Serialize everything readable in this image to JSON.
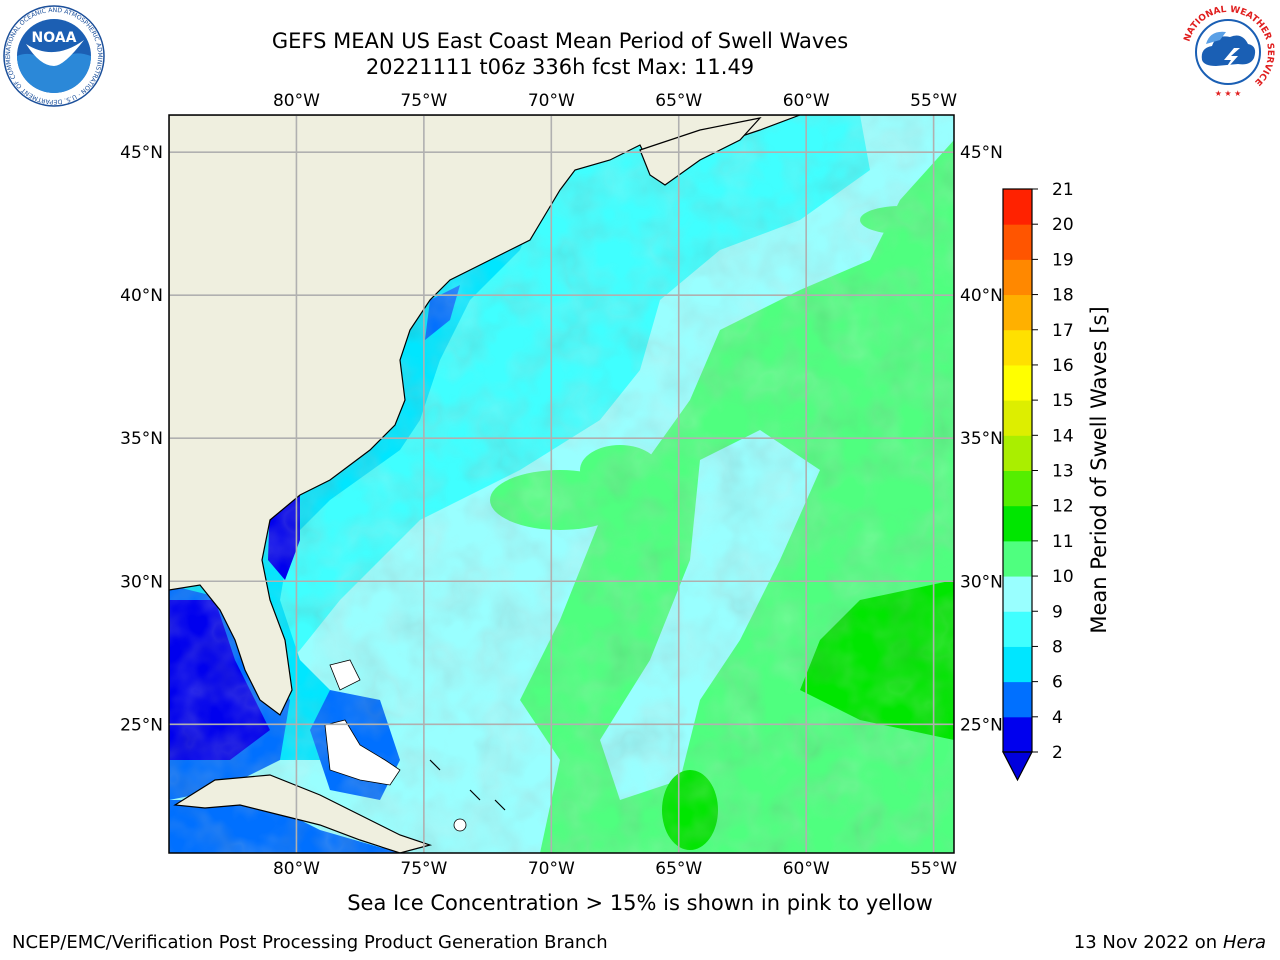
{
  "title": {
    "line1": "GEFS MEAN US East Coast Mean Period of Swell Waves",
    "line2": "20221111 t06z 336h fcst   Max: 11.49"
  },
  "map": {
    "lon_labels": [
      "80°W",
      "75°W",
      "70°W",
      "65°W",
      "60°W",
      "55°W"
    ],
    "lat_labels": [
      "45°N",
      "40°N",
      "35°N",
      "30°N",
      "25°N"
    ],
    "lon_values": [
      -80,
      -75,
      -70,
      -65,
      -60,
      -55
    ],
    "lat_values": [
      45,
      40,
      35,
      30,
      25
    ],
    "extent": {
      "lon_min": -85,
      "lon_max": -54.2,
      "lat_min": 20.5,
      "lat_max": 46.3
    },
    "land_color": "#efefdf",
    "grid_color": "#b0b0b0"
  },
  "colorbar": {
    "label": "Mean Period of Swell Waves [s]",
    "tick_labels": [
      "2",
      "4",
      "6",
      "8",
      "9",
      "10",
      "11",
      "12",
      "13",
      "14",
      "15",
      "16",
      "17",
      "18",
      "19",
      "20",
      "21"
    ],
    "colors": [
      "#0000ee",
      "#0070ff",
      "#00e6ff",
      "#40ffff",
      "#99ffff",
      "#4fff7f",
      "#00e600",
      "#55ee00",
      "#aaee00",
      "#ddee00",
      "#ffff00",
      "#ffe000",
      "#ffb000",
      "#ff8800",
      "#ff5500",
      "#ff2200",
      "#ff0000"
    ],
    "under_color": "#0000dd"
  },
  "logos": {
    "noaa": {
      "text": "NOAA",
      "ring_text": "NATIONAL OCEANIC AND ATMOSPHERIC ADMINISTRATION · U.S. DEPARTMENT OF COMMERCE"
    },
    "nws": {
      "ring_text": "NATIONAL WEATHER SERVICE"
    }
  },
  "footer": {
    "ice_note": "Sea Ice Concentration > 15% is shown in pink to yellow",
    "credit": "NCEP/EMC/Verification Post Processing Product Generation Branch",
    "date": "13 Nov 2022 on",
    "machine": "Hera"
  }
}
